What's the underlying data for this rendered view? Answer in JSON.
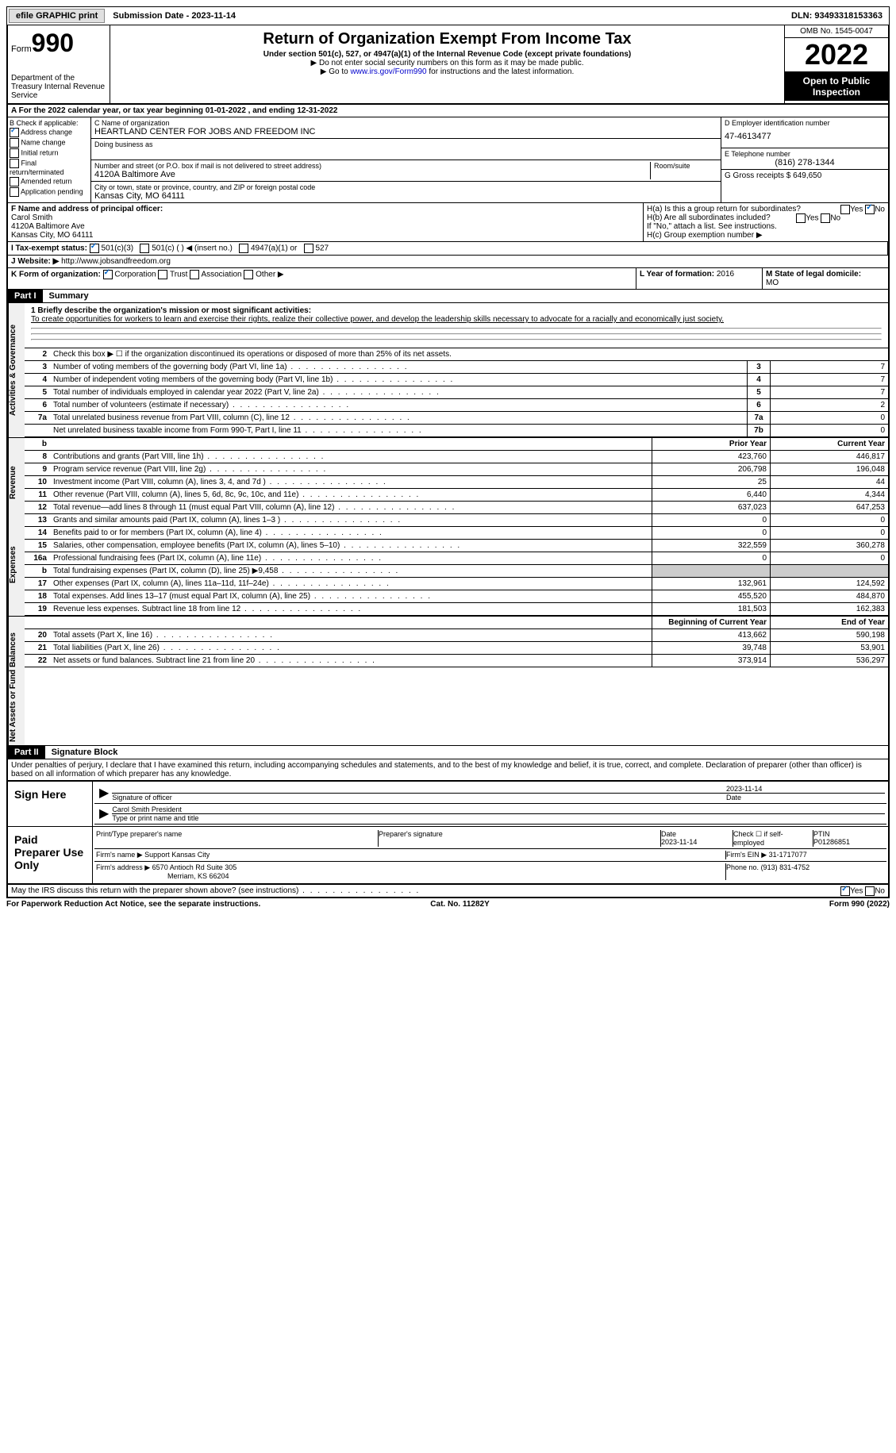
{
  "topbar": {
    "efile": "efile GRAPHIC print",
    "submission": "Submission Date - 2023-11-14",
    "dln": "DLN: 93493318153363"
  },
  "header": {
    "form_label": "Form",
    "form_num": "990",
    "dept": "Department of the Treasury\nInternal Revenue Service",
    "title": "Return of Organization Exempt From Income Tax",
    "subtitle": "Under section 501(c), 527, or 4947(a)(1) of the Internal Revenue Code (except private foundations)",
    "note1": "▶ Do not enter social security numbers on this form as it may be made public.",
    "note2_pre": "▶ Go to ",
    "note2_link": "www.irs.gov/Form990",
    "note2_post": " for instructions and the latest information.",
    "omb": "OMB No. 1545-0047",
    "year": "2022",
    "inspection": "Open to Public Inspection"
  },
  "rowA": "A For the 2022 calendar year, or tax year beginning 01-01-2022   , and ending 12-31-2022",
  "colB": {
    "title": "B Check if applicable:",
    "items": [
      {
        "label": "Address change",
        "checked": true
      },
      {
        "label": "Name change",
        "checked": false
      },
      {
        "label": "Initial return",
        "checked": false
      },
      {
        "label": "Final return/terminated",
        "checked": false
      },
      {
        "label": "Amended return",
        "checked": false
      },
      {
        "label": "Application pending",
        "checked": false
      }
    ]
  },
  "colC": {
    "name_label": "C Name of organization",
    "name": "HEARTLAND CENTER FOR JOBS AND FREEDOM INC",
    "dba_label": "Doing business as",
    "addr_label": "Number and street (or P.O. box if mail is not delivered to street address)",
    "room_label": "Room/suite",
    "addr": "4120A Baltimore Ave",
    "city_label": "City or town, state or province, country, and ZIP or foreign postal code",
    "city": "Kansas City, MO  64111"
  },
  "colD": {
    "ein_label": "D Employer identification number",
    "ein": "47-4613477",
    "phone_label": "E Telephone number",
    "phone": "(816) 278-1344",
    "gross_label": "G Gross receipts $",
    "gross": "649,650"
  },
  "rowF": {
    "label": "F Name and address of principal officer:",
    "name": "Carol Smith",
    "addr": "4120A Baltimore Ave",
    "city": "Kansas City, MO  64111"
  },
  "colH": {
    "ha": "H(a)  Is this a group return for subordinates?",
    "hb": "H(b)  Are all subordinates included?",
    "hb_note": "If \"No,\" attach a list. See instructions.",
    "hc": "H(c)  Group exemption number ▶"
  },
  "rowI": {
    "label": "I   Tax-exempt status:",
    "opts": [
      "501(c)(3)",
      "501(c) (  ) ◀ (insert no.)",
      "4947(a)(1) or",
      "527"
    ]
  },
  "rowJ": {
    "label": "J   Website: ▶",
    "url": "http://www.jobsandfreedom.org"
  },
  "rowK": {
    "label": "K Form of organization:",
    "opts": [
      "Corporation",
      "Trust",
      "Association",
      "Other ▶"
    ]
  },
  "rowL": {
    "label": "L Year of formation:",
    "val": "2016"
  },
  "rowM": {
    "label": "M State of legal domicile:",
    "val": "MO"
  },
  "part1": {
    "header": "Part I",
    "title": "Summary",
    "mission_label": "1  Briefly describe the organization's mission or most significant activities:",
    "mission": "To create opportunities for workers to learn and exercise their rights, realize their collective power, and develop the leadership skills necessary to advocate for a racially and economically just society.",
    "line2": "Check this box ▶ ☐ if the organization discontinued its operations or disposed of more than 25% of its net assets.",
    "governance": [
      {
        "n": "3",
        "d": "Number of voting members of the governing body (Part VI, line 1a)",
        "b": "3",
        "v": "7"
      },
      {
        "n": "4",
        "d": "Number of independent voting members of the governing body (Part VI, line 1b)",
        "b": "4",
        "v": "7"
      },
      {
        "n": "5",
        "d": "Total number of individuals employed in calendar year 2022 (Part V, line 2a)",
        "b": "5",
        "v": "7"
      },
      {
        "n": "6",
        "d": "Total number of volunteers (estimate if necessary)",
        "b": "6",
        "v": "2"
      },
      {
        "n": "7a",
        "d": "Total unrelated business revenue from Part VIII, column (C), line 12",
        "b": "7a",
        "v": "0"
      },
      {
        "n": "",
        "d": "Net unrelated business taxable income from Form 990-T, Part I, line 11",
        "b": "7b",
        "v": "0"
      }
    ],
    "col_prior": "Prior Year",
    "col_current": "Current Year",
    "revenue": [
      {
        "n": "8",
        "d": "Contributions and grants (Part VIII, line 1h)",
        "p": "423,760",
        "c": "446,817"
      },
      {
        "n": "9",
        "d": "Program service revenue (Part VIII, line 2g)",
        "p": "206,798",
        "c": "196,048"
      },
      {
        "n": "10",
        "d": "Investment income (Part VIII, column (A), lines 3, 4, and 7d )",
        "p": "25",
        "c": "44"
      },
      {
        "n": "11",
        "d": "Other revenue (Part VIII, column (A), lines 5, 6d, 8c, 9c, 10c, and 11e)",
        "p": "6,440",
        "c": "4,344"
      },
      {
        "n": "12",
        "d": "Total revenue—add lines 8 through 11 (must equal Part VIII, column (A), line 12)",
        "p": "637,023",
        "c": "647,253"
      }
    ],
    "expenses": [
      {
        "n": "13",
        "d": "Grants and similar amounts paid (Part IX, column (A), lines 1–3 )",
        "p": "0",
        "c": "0"
      },
      {
        "n": "14",
        "d": "Benefits paid to or for members (Part IX, column (A), line 4)",
        "p": "0",
        "c": "0"
      },
      {
        "n": "15",
        "d": "Salaries, other compensation, employee benefits (Part IX, column (A), lines 5–10)",
        "p": "322,559",
        "c": "360,278"
      },
      {
        "n": "16a",
        "d": "Professional fundraising fees (Part IX, column (A), line 11e)",
        "p": "0",
        "c": "0"
      },
      {
        "n": "b",
        "d": "Total fundraising expenses (Part IX, column (D), line 25) ▶9,458",
        "p": "",
        "c": "",
        "shaded": true
      },
      {
        "n": "17",
        "d": "Other expenses (Part IX, column (A), lines 11a–11d, 11f–24e)",
        "p": "132,961",
        "c": "124,592"
      },
      {
        "n": "18",
        "d": "Total expenses. Add lines 13–17 (must equal Part IX, column (A), line 25)",
        "p": "455,520",
        "c": "484,870"
      },
      {
        "n": "19",
        "d": "Revenue less expenses. Subtract line 18 from line 12",
        "p": "181,503",
        "c": "162,383"
      }
    ],
    "col_begin": "Beginning of Current Year",
    "col_end": "End of Year",
    "assets": [
      {
        "n": "20",
        "d": "Total assets (Part X, line 16)",
        "p": "413,662",
        "c": "590,198"
      },
      {
        "n": "21",
        "d": "Total liabilities (Part X, line 26)",
        "p": "39,748",
        "c": "53,901"
      },
      {
        "n": "22",
        "d": "Net assets or fund balances. Subtract line 21 from line 20",
        "p": "373,914",
        "c": "536,297"
      }
    ]
  },
  "part2": {
    "header": "Part II",
    "title": "Signature Block",
    "perjury": "Under penalties of perjury, I declare that I have examined this return, including accompanying schedules and statements, and to the best of my knowledge and belief, it is true, correct, and complete. Declaration of preparer (other than officer) is based on all information of which preparer has any knowledge.",
    "sign_here": "Sign Here",
    "sig_officer": "Signature of officer",
    "sig_date": "2023-11-14",
    "sig_name": "Carol Smith  President",
    "sig_type": "Type or print name and title",
    "paid": "Paid Preparer Use Only",
    "prep_name_label": "Print/Type preparer's name",
    "prep_sig_label": "Preparer's signature",
    "prep_date_label": "Date",
    "prep_date": "2023-11-14",
    "self_emp": "Check ☐ if self-employed",
    "ptin_label": "PTIN",
    "ptin": "P01286851",
    "firm_name_label": "Firm's name    ▶",
    "firm_name": "Support Kansas City",
    "firm_ein_label": "Firm's EIN ▶",
    "firm_ein": "31-1717077",
    "firm_addr_label": "Firm's address ▶",
    "firm_addr": "6570 Antioch Rd Suite 305",
    "firm_city": "Merriam, KS  66204",
    "firm_phone_label": "Phone no.",
    "firm_phone": "(913) 831-4752",
    "discuss": "May the IRS discuss this return with the preparer shown above? (see instructions)"
  },
  "footer": {
    "left": "For Paperwork Reduction Act Notice, see the separate instructions.",
    "mid": "Cat. No. 11282Y",
    "right": "Form 990 (2022)"
  }
}
